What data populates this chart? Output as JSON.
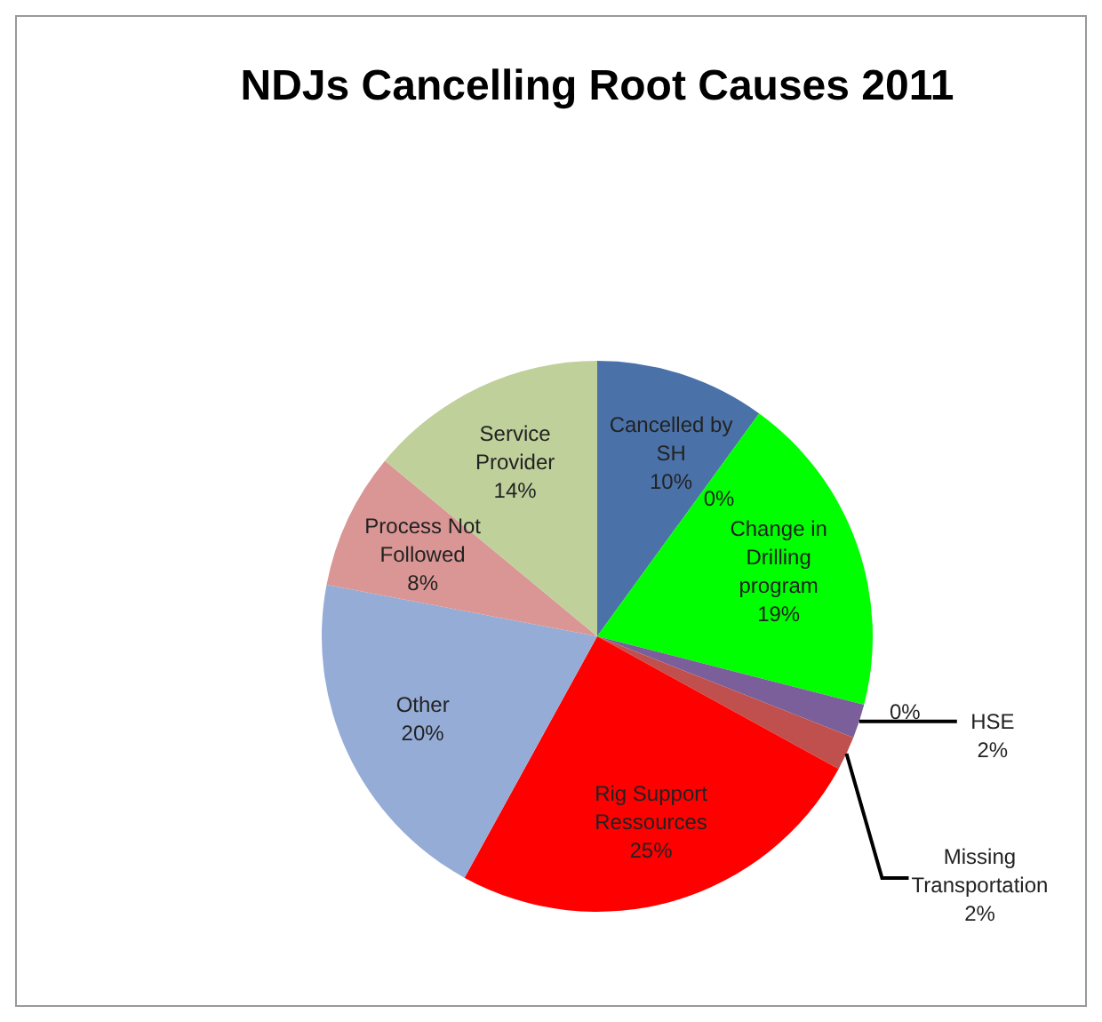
{
  "chart_data": {
    "type": "pie",
    "title": "NDJs Cancelling Root Causes 2011",
    "categories": [
      "Cancelled by SH",
      null,
      "Change in Drilling program",
      null,
      "HSE",
      "Missing Transportation",
      "Rig Support Ressources",
      "Other",
      "Process Not Followed",
      "Service Provider"
    ],
    "values": [
      10,
      0,
      19,
      0,
      2,
      2,
      25,
      20,
      8,
      14
    ],
    "value_labels": [
      "10%",
      "0%",
      "19%",
      "0%",
      "2%",
      "2%",
      "25%",
      "20%",
      "8%",
      "14%"
    ],
    "colors": [
      "#4a72a8",
      "#c0504d",
      "#00ff00",
      "#9bbb59",
      "#7a5f9a",
      "#c0504d",
      "#ff0000",
      "#95acd6",
      "#d99694",
      "#bfd09b"
    ]
  }
}
